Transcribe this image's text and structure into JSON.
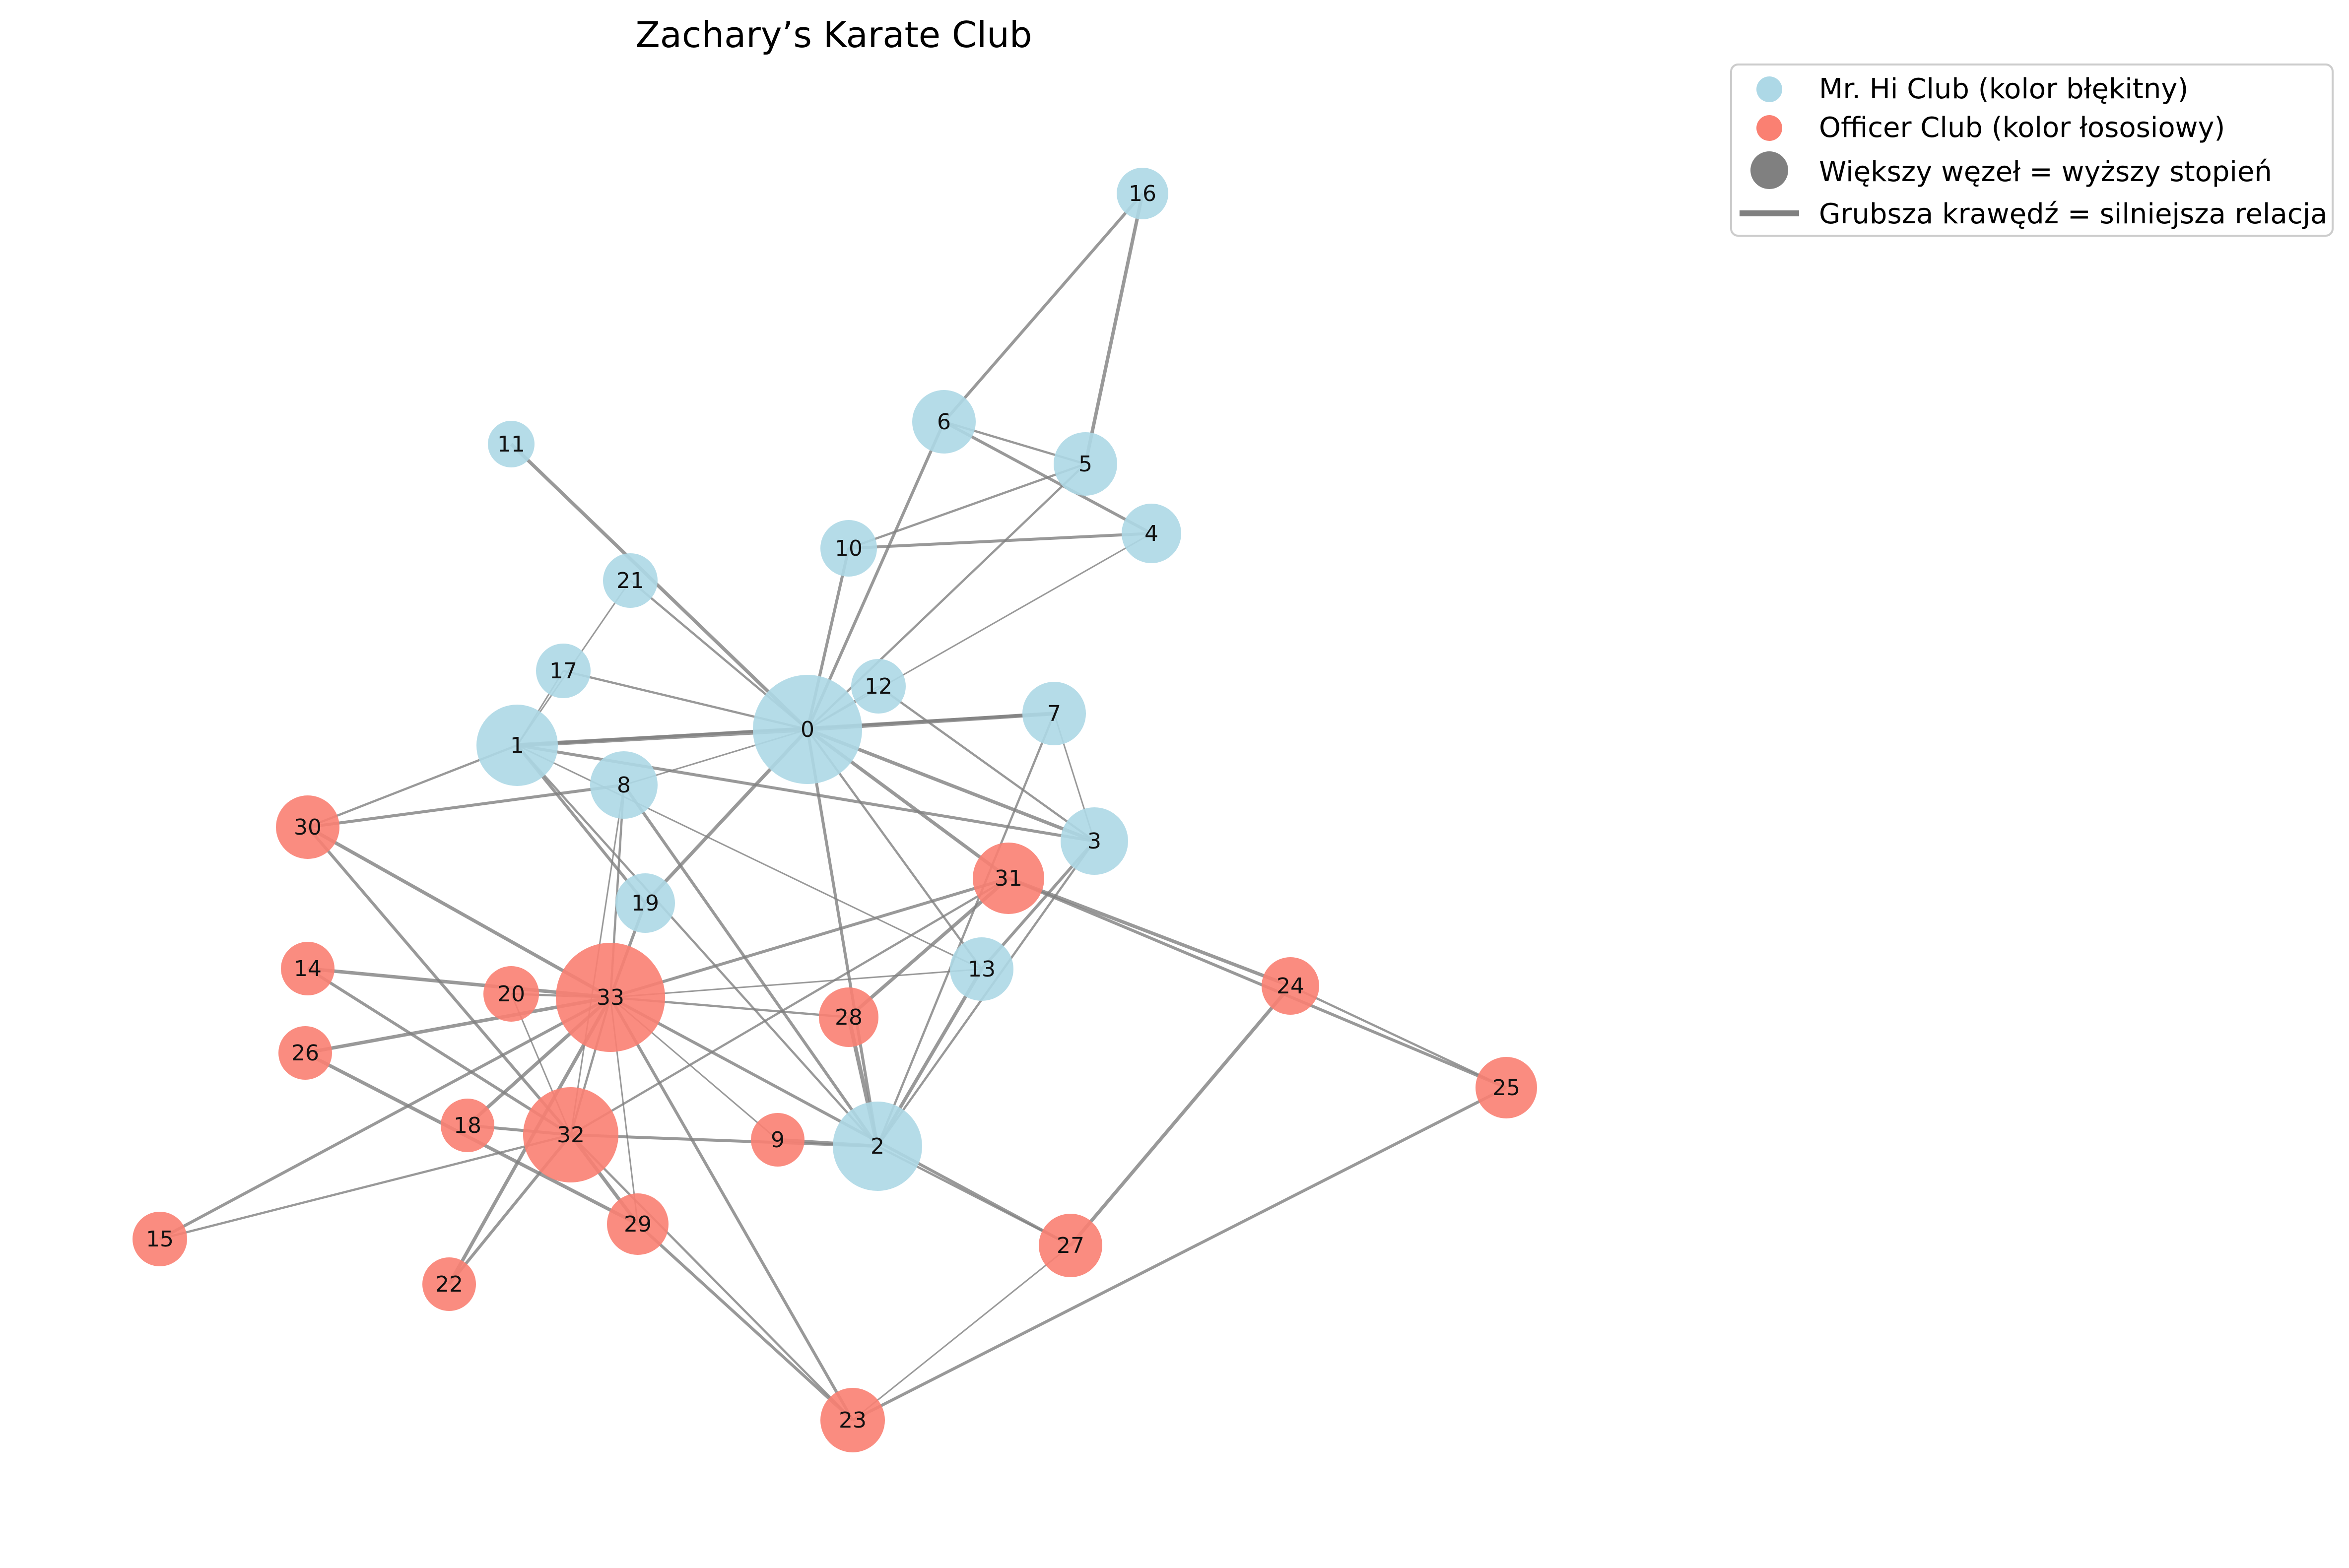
{
  "title": "Zachary’s Karate Club",
  "colors": {
    "mr_hi": "#add8e6",
    "officer": "#fa8072",
    "edge": "#808080",
    "legend_size_marker": "#808080"
  },
  "legend": [
    {
      "marker": "circle-mr-hi",
      "label": "Mr. Hi Club (kolor błękitny)"
    },
    {
      "marker": "circle-officer",
      "label": "Officer Club (kolor łososiowy)"
    },
    {
      "marker": "circle-size",
      "label": "Większy węzeł = wyższy stopień"
    },
    {
      "marker": "line",
      "label": "Grubsza krawędź = silniejsza relacja"
    }
  ],
  "nodes": [
    {
      "id": "0",
      "club": "mr_hi"
    },
    {
      "id": "1",
      "club": "mr_hi"
    },
    {
      "id": "2",
      "club": "mr_hi"
    },
    {
      "id": "3",
      "club": "mr_hi"
    },
    {
      "id": "4",
      "club": "mr_hi"
    },
    {
      "id": "5",
      "club": "mr_hi"
    },
    {
      "id": "6",
      "club": "mr_hi"
    },
    {
      "id": "7",
      "club": "mr_hi"
    },
    {
      "id": "8",
      "club": "mr_hi"
    },
    {
      "id": "9",
      "club": "officer"
    },
    {
      "id": "10",
      "club": "mr_hi"
    },
    {
      "id": "11",
      "club": "mr_hi"
    },
    {
      "id": "12",
      "club": "mr_hi"
    },
    {
      "id": "13",
      "club": "mr_hi"
    },
    {
      "id": "14",
      "club": "officer"
    },
    {
      "id": "15",
      "club": "officer"
    },
    {
      "id": "16",
      "club": "mr_hi"
    },
    {
      "id": "17",
      "club": "mr_hi"
    },
    {
      "id": "18",
      "club": "officer"
    },
    {
      "id": "19",
      "club": "mr_hi"
    },
    {
      "id": "20",
      "club": "officer"
    },
    {
      "id": "21",
      "club": "mr_hi"
    },
    {
      "id": "22",
      "club": "officer"
    },
    {
      "id": "23",
      "club": "officer"
    },
    {
      "id": "24",
      "club": "officer"
    },
    {
      "id": "25",
      "club": "officer"
    },
    {
      "id": "26",
      "club": "officer"
    },
    {
      "id": "27",
      "club": "officer"
    },
    {
      "id": "28",
      "club": "officer"
    },
    {
      "id": "29",
      "club": "officer"
    },
    {
      "id": "30",
      "club": "officer"
    },
    {
      "id": "31",
      "club": "officer"
    },
    {
      "id": "32",
      "club": "officer"
    },
    {
      "id": "33",
      "club": "officer"
    }
  ],
  "edges": [
    [
      "0",
      "1"
    ],
    [
      "0",
      "2"
    ],
    [
      "0",
      "3"
    ],
    [
      "0",
      "4"
    ],
    [
      "0",
      "5"
    ],
    [
      "0",
      "6"
    ],
    [
      "0",
      "7"
    ],
    [
      "0",
      "8"
    ],
    [
      "0",
      "10"
    ],
    [
      "0",
      "11"
    ],
    [
      "0",
      "12"
    ],
    [
      "0",
      "13"
    ],
    [
      "0",
      "17"
    ],
    [
      "0",
      "19"
    ],
    [
      "0",
      "21"
    ],
    [
      "0",
      "31"
    ],
    [
      "1",
      "2"
    ],
    [
      "1",
      "3"
    ],
    [
      "1",
      "7"
    ],
    [
      "1",
      "13"
    ],
    [
      "1",
      "17"
    ],
    [
      "1",
      "19"
    ],
    [
      "1",
      "21"
    ],
    [
      "1",
      "30"
    ],
    [
      "2",
      "3"
    ],
    [
      "2",
      "7"
    ],
    [
      "2",
      "8"
    ],
    [
      "2",
      "9"
    ],
    [
      "2",
      "13"
    ],
    [
      "2",
      "27"
    ],
    [
      "2",
      "28"
    ],
    [
      "2",
      "32"
    ],
    [
      "3",
      "7"
    ],
    [
      "3",
      "12"
    ],
    [
      "3",
      "13"
    ],
    [
      "4",
      "6"
    ],
    [
      "4",
      "10"
    ],
    [
      "5",
      "6"
    ],
    [
      "5",
      "10"
    ],
    [
      "5",
      "16"
    ],
    [
      "6",
      "16"
    ],
    [
      "8",
      "30"
    ],
    [
      "8",
      "32"
    ],
    [
      "8",
      "33"
    ],
    [
      "9",
      "33"
    ],
    [
      "13",
      "33"
    ],
    [
      "14",
      "32"
    ],
    [
      "14",
      "33"
    ],
    [
      "15",
      "32"
    ],
    [
      "15",
      "33"
    ],
    [
      "18",
      "32"
    ],
    [
      "18",
      "33"
    ],
    [
      "19",
      "33"
    ],
    [
      "20",
      "32"
    ],
    [
      "20",
      "33"
    ],
    [
      "22",
      "32"
    ],
    [
      "22",
      "33"
    ],
    [
      "23",
      "25"
    ],
    [
      "23",
      "27"
    ],
    [
      "23",
      "29"
    ],
    [
      "23",
      "32"
    ],
    [
      "23",
      "33"
    ],
    [
      "24",
      "25"
    ],
    [
      "24",
      "27"
    ],
    [
      "24",
      "31"
    ],
    [
      "25",
      "31"
    ],
    [
      "26",
      "29"
    ],
    [
      "26",
      "33"
    ],
    [
      "27",
      "33"
    ],
    [
      "28",
      "31"
    ],
    [
      "28",
      "33"
    ],
    [
      "29",
      "32"
    ],
    [
      "29",
      "33"
    ],
    [
      "30",
      "32"
    ],
    [
      "30",
      "33"
    ],
    [
      "31",
      "32"
    ],
    [
      "31",
      "33"
    ],
    [
      "32",
      "33"
    ]
  ]
}
